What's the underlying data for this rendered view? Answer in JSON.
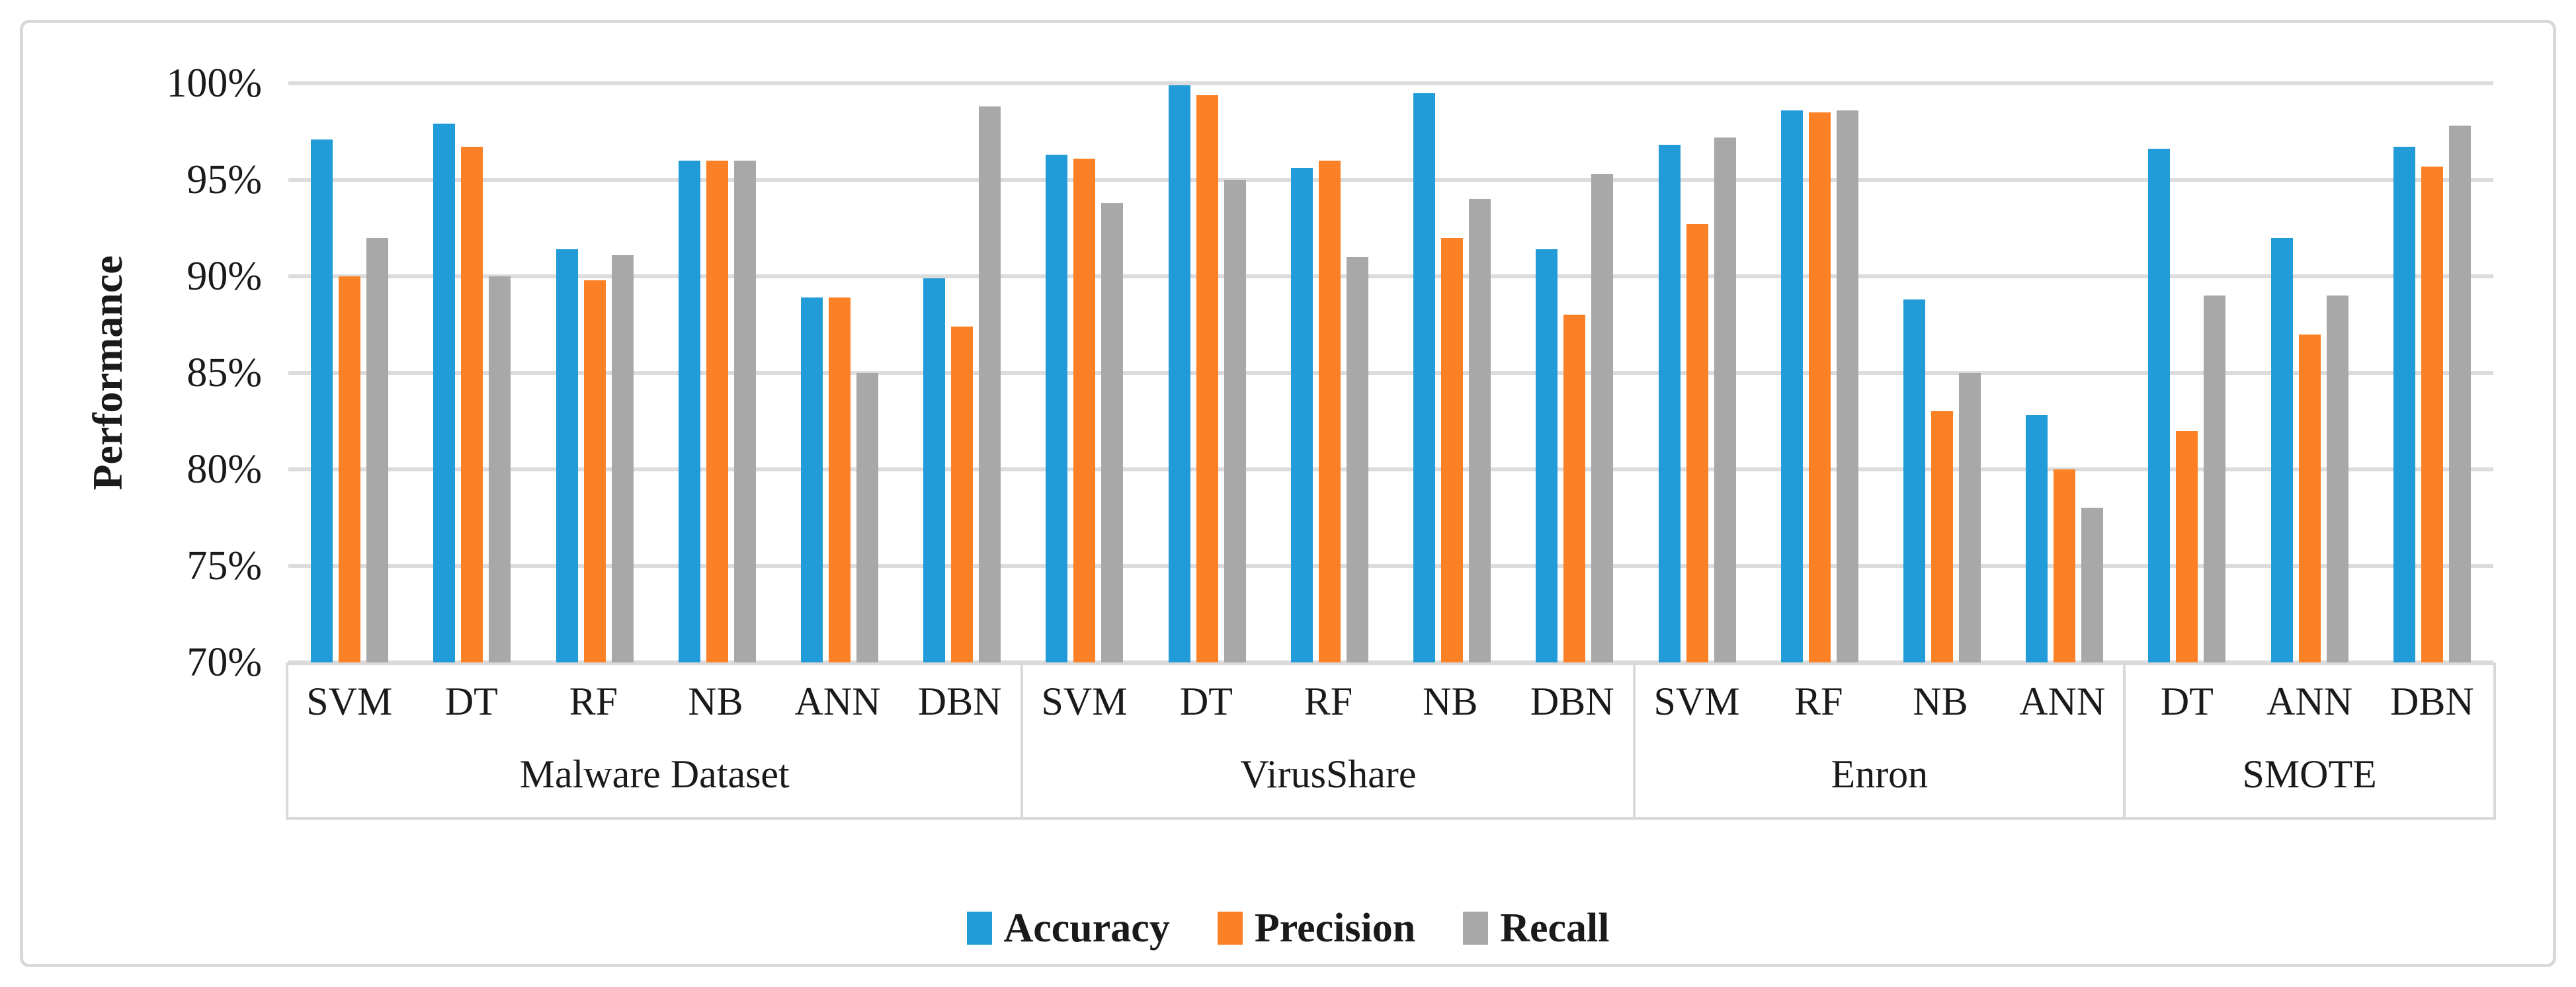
{
  "figure": {
    "background_color": "#FFFFFF",
    "border_color": "#D9D9D9",
    "gridline_color": "#DCDCDC"
  },
  "y_axis": {
    "title": "Performance",
    "tick_labels": [
      "100%",
      "95%",
      "90%",
      "85%",
      "80%",
      "75%",
      "70%"
    ]
  },
  "legend": {
    "items": [
      {
        "label": "Accuracy",
        "color": "#219CD8",
        "marker": "blue-square-icon"
      },
      {
        "label": "Precision",
        "color": "#FC8126",
        "marker": "orange-square-icon"
      },
      {
        "label": "Recall",
        "color": "#A8A8A8",
        "marker": "gray-square-icon"
      }
    ]
  },
  "chart_data": {
    "type": "bar",
    "title": "",
    "xlabel": "",
    "ylabel": "Performance",
    "ylim": [
      70,
      100
    ],
    "ytick_step": 5,
    "ytick_labels": [
      "100%",
      "95%",
      "90%",
      "85%",
      "80%",
      "75%",
      "70%"
    ],
    "grid": true,
    "legend_position": "bottom-center",
    "series": [
      "Accuracy",
      "Precision",
      "Recall"
    ],
    "colors": {
      "Accuracy": "#219CD8",
      "Precision": "#FC8126",
      "Recall": "#A8A8A8"
    },
    "groups": [
      {
        "label": "Malware Dataset",
        "categories": [
          "SVM",
          "DT",
          "RF",
          "NB",
          "ANN",
          "DBN"
        ],
        "values": {
          "Accuracy": [
            97.1,
            97.9,
            91.4,
            96.0,
            88.9,
            89.9
          ],
          "Precision": [
            90.0,
            96.7,
            89.8,
            96.0,
            88.9,
            87.4
          ],
          "Recall": [
            92.0,
            90.0,
            91.1,
            96.0,
            85.0,
            98.8
          ]
        }
      },
      {
        "label": "VirusShare",
        "categories": [
          "SVM",
          "DT",
          "RF",
          "NB",
          "DBN"
        ],
        "values": {
          "Accuracy": [
            96.3,
            99.9,
            95.6,
            99.5,
            91.4
          ],
          "Precision": [
            96.1,
            99.4,
            96.0,
            92.0,
            88.0
          ],
          "Recall": [
            93.8,
            95.0,
            91.0,
            94.0,
            95.3
          ]
        }
      },
      {
        "label": "Enron",
        "categories": [
          "SVM",
          "RF",
          "NB",
          "ANN"
        ],
        "values": {
          "Accuracy": [
            96.8,
            98.6,
            88.8,
            82.8
          ],
          "Precision": [
            92.7,
            98.5,
            83.0,
            80.0
          ],
          "Recall": [
            97.2,
            98.6,
            85.0,
            78.0
          ]
        }
      },
      {
        "label": "SMOTE",
        "categories": [
          "DT",
          "ANN",
          "DBN"
        ],
        "values": {
          "Accuracy": [
            96.6,
            92.0,
            96.7
          ],
          "Precision": [
            82.0,
            87.0,
            95.7
          ],
          "Recall": [
            89.0,
            89.0,
            97.8
          ]
        }
      }
    ]
  }
}
